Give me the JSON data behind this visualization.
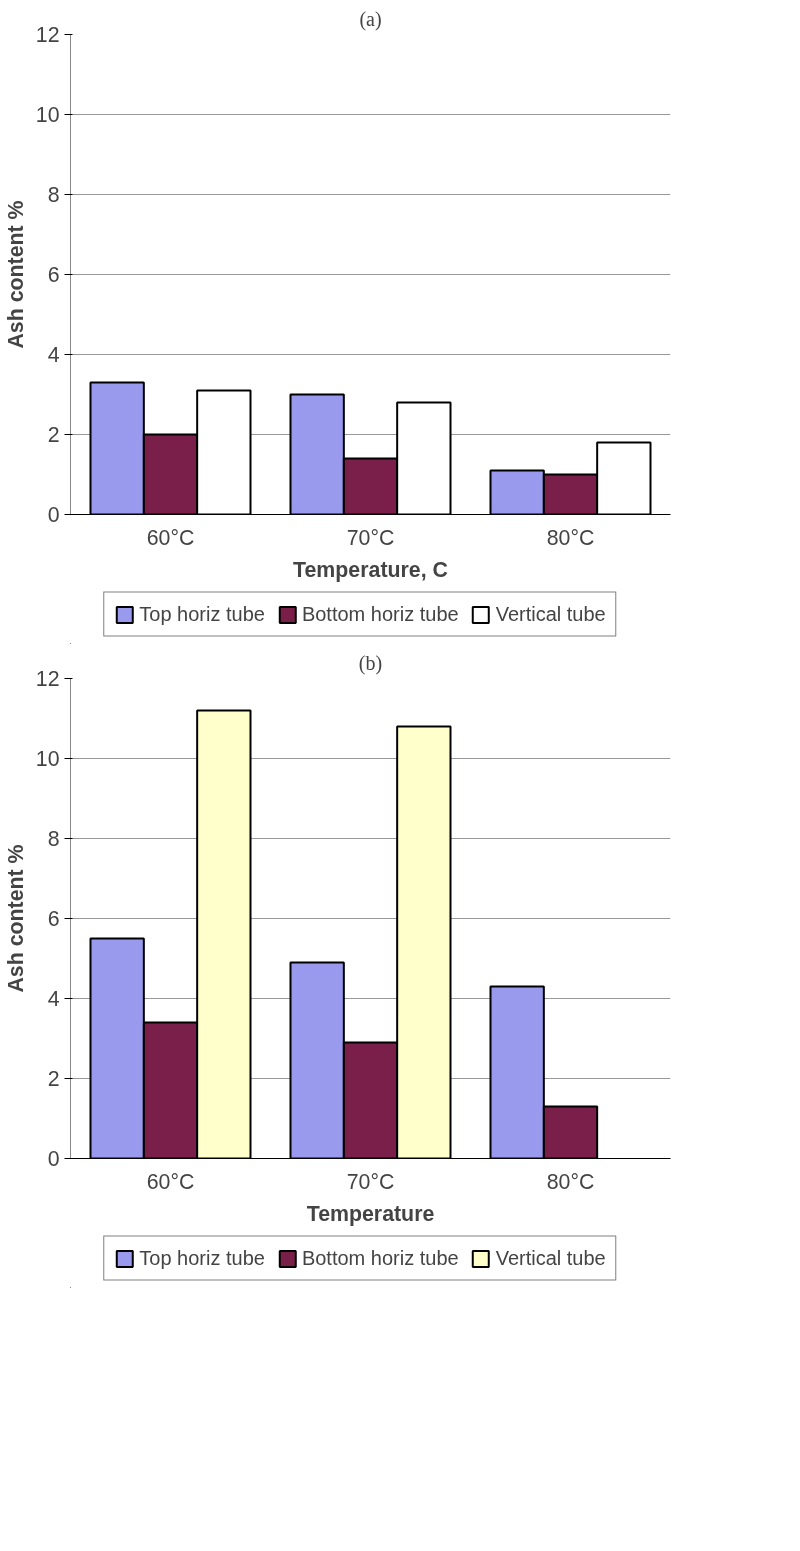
{
  "chart_data": [
    {
      "type": "bar",
      "title": "(a)",
      "xlabel": "Temperature, C",
      "ylabel": "Ash content %",
      "categories": [
        "60°C",
        "70°C",
        "80°C"
      ],
      "series": [
        {
          "name": "Top horiz tube",
          "color": "#9999ee",
          "values": [
            3.3,
            3.0,
            1.1
          ]
        },
        {
          "name": "Bottom horiz tube",
          "color": "#7a1f4a",
          "values": [
            2.0,
            1.4,
            1.0
          ]
        },
        {
          "name": "Vertical tube",
          "color": "#ffffff",
          "values": [
            3.1,
            2.8,
            1.8
          ]
        }
      ],
      "ylim": [
        0,
        12
      ],
      "yticks": [
        0,
        2,
        4,
        6,
        8,
        10,
        12
      ],
      "grid": "y",
      "legend": "bottom"
    },
    {
      "type": "bar",
      "title": "(b)",
      "xlabel": "Temperature",
      "ylabel": "Ash content %",
      "categories": [
        "60°C",
        "70°C",
        "80°C"
      ],
      "series": [
        {
          "name": "Top horiz tube",
          "color": "#9999ee",
          "values": [
            5.5,
            4.9,
            4.3
          ]
        },
        {
          "name": "Bottom horiz tube",
          "color": "#7a1f4a",
          "values": [
            3.4,
            2.9,
            1.3
          ]
        },
        {
          "name": "Vertical tube",
          "color": "#ffffcc",
          "values": [
            11.2,
            10.8,
            null
          ]
        }
      ],
      "ylim": [
        0,
        12
      ],
      "yticks": [
        0,
        2,
        4,
        6,
        8,
        10,
        12
      ],
      "grid": "y",
      "legend": "bottom"
    }
  ]
}
